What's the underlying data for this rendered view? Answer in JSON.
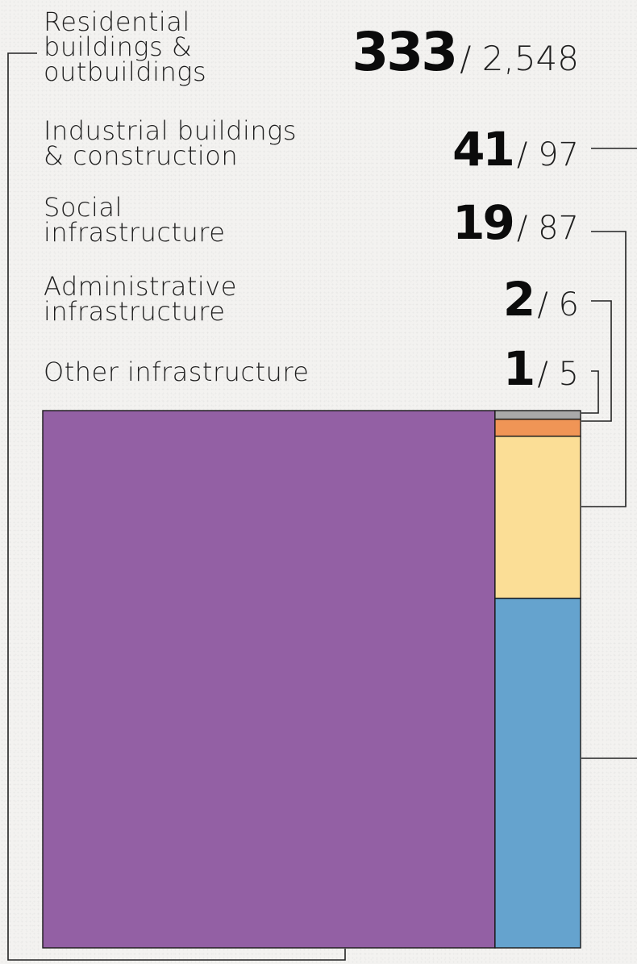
{
  "chart_data": {
    "type": "treemap",
    "categories": [
      "Residential\nbuildings &\noutbuildings",
      "Industrial buildings\n& construction",
      "Social\ninfrastructure",
      "Administrative\ninfrastructure",
      "Other infrastructure"
    ],
    "series": [
      {
        "name": "",
        "values": [
          333,
          41,
          19,
          2,
          1
        ],
        "totals": [
          2548,
          97,
          87,
          6,
          5
        ]
      }
    ],
    "items": [
      {
        "label": "Residential\nbuildings &\noutbuildings",
        "value": 333,
        "value_text": "333",
        "total_text": "/ 2,548",
        "color": "#9360a4"
      },
      {
        "label": "Industrial buildings\n& construction",
        "value": 41,
        "value_text": "41",
        "total_text": "/ 97",
        "color": "#65a3ce"
      },
      {
        "label": "Social\ninfrastructure",
        "value": 19,
        "value_text": "19",
        "total_text": "/ 87",
        "color": "#fbde96"
      },
      {
        "label": "Administrative\ninfrastructure",
        "value": 2,
        "value_text": "2",
        "total_text": "/ 6",
        "color": "#f09556"
      },
      {
        "label": "Other infrastructure",
        "value": 1,
        "value_text": "1",
        "total_text": "/ 5",
        "color": "#a9a9a9"
      }
    ],
    "title": "",
    "legend": "top-left"
  }
}
